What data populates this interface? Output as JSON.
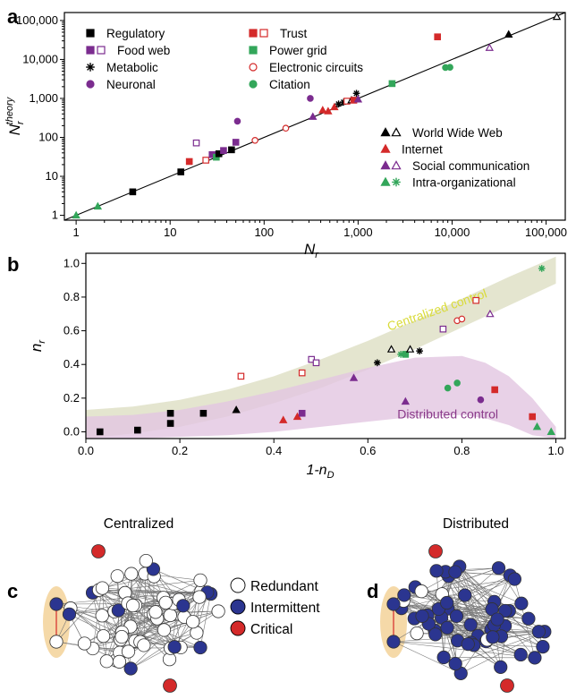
{
  "panel_labels": [
    "a",
    "b",
    "c",
    "d"
  ],
  "chart_data": [
    {
      "type": "scatter",
      "panel": "a",
      "xlabel_main": "N",
      "xlabel_sub": "r",
      "ylabel_main": "N",
      "ylabel_sub": "r",
      "ylabel_sup": "theory",
      "x_scale": "log",
      "y_scale": "log",
      "xlim": [
        0.75,
        160000
      ],
      "ylim": [
        0.75,
        160000
      ],
      "x_ticks": [
        {
          "v": 1,
          "label": "1"
        },
        {
          "v": 10,
          "label": "10"
        },
        {
          "v": 100,
          "label": "100"
        },
        {
          "v": 1000,
          "label": "1,000"
        },
        {
          "v": 10000,
          "label": "10,000"
        },
        {
          "v": 100000,
          "label": "100,000"
        }
      ],
      "y_ticks": [
        {
          "v": 1,
          "label": "1"
        },
        {
          "v": 10,
          "label": "10"
        },
        {
          "v": 100,
          "label": "100"
        },
        {
          "v": 1000,
          "label": "1,000"
        },
        {
          "v": 10000,
          "label": "10,000"
        },
        {
          "v": 100000,
          "label": "100,000"
        }
      ],
      "reference_line": "y = x",
      "legend_left": [
        {
          "label": "Regulatory",
          "markers": [
            {
              "shape": "square",
              "fill": true,
              "color": "#000000"
            }
          ]
        },
        {
          "label": "Food web",
          "markers": [
            {
              "shape": "square",
              "fill": true,
              "color": "#7b2c8f"
            },
            {
              "shape": "square",
              "fill": false,
              "color": "#7b2c8f"
            }
          ]
        },
        {
          "label": "Metabolic",
          "markers": [
            {
              "shape": "asterisk",
              "fill": true,
              "color": "#000000"
            }
          ]
        },
        {
          "label": "Neuronal",
          "markers": [
            {
              "shape": "circle",
              "fill": true,
              "color": "#7b2c8f"
            }
          ]
        }
      ],
      "legend_mid": [
        {
          "label": "Trust",
          "markers": [
            {
              "shape": "square",
              "fill": true,
              "color": "#d42a2a"
            },
            {
              "shape": "square",
              "fill": false,
              "color": "#d42a2a"
            }
          ]
        },
        {
          "label": "Power grid",
          "markers": [
            {
              "shape": "square",
              "fill": true,
              "color": "#33a65a"
            }
          ]
        },
        {
          "label": "Electronic circuits",
          "markers": [
            {
              "shape": "circle",
              "fill": false,
              "color": "#d42a2a"
            }
          ]
        },
        {
          "label": "Citation",
          "markers": [
            {
              "shape": "circle",
              "fill": true,
              "color": "#33a65a"
            }
          ]
        }
      ],
      "legend_right": [
        {
          "label": "World Wide Web",
          "markers": [
            {
              "shape": "triangle",
              "fill": true,
              "color": "#000000"
            },
            {
              "shape": "triangle",
              "fill": false,
              "color": "#000000"
            }
          ]
        },
        {
          "label": "Internet",
          "markers": [
            {
              "shape": "triangle",
              "fill": true,
              "color": "#d42a2a"
            }
          ]
        },
        {
          "label": "Social communication",
          "markers": [
            {
              "shape": "triangle",
              "fill": true,
              "color": "#7b2c8f"
            },
            {
              "shape": "triangle",
              "fill": false,
              "color": "#7b2c8f"
            }
          ]
        },
        {
          "label": "Intra-organizational",
          "markers": [
            {
              "shape": "triangle",
              "fill": true,
              "color": "#33a65a"
            },
            {
              "shape": "asterisk",
              "fill": true,
              "color": "#33a65a"
            }
          ]
        }
      ],
      "points": [
        {
          "x": 1,
          "y": 1,
          "shape": "triangle",
          "fill": true,
          "color": "#33a65a"
        },
        {
          "x": 1.7,
          "y": 1.7,
          "shape": "triangle",
          "fill": true,
          "color": "#33a65a"
        },
        {
          "x": 4,
          "y": 4,
          "shape": "square",
          "fill": true,
          "color": "#000000"
        },
        {
          "x": 13,
          "y": 13,
          "shape": "square",
          "fill": true,
          "color": "#000000"
        },
        {
          "x": 16,
          "y": 24,
          "shape": "square",
          "fill": true,
          "color": "#d42a2a"
        },
        {
          "x": 19,
          "y": 72,
          "shape": "square",
          "fill": false,
          "color": "#7b2c8f"
        },
        {
          "x": 24,
          "y": 26,
          "shape": "square",
          "fill": false,
          "color": "#d42a2a"
        },
        {
          "x": 28,
          "y": 36,
          "shape": "square",
          "fill": true,
          "color": "#7b2c8f"
        },
        {
          "x": 31,
          "y": 31,
          "shape": "square",
          "fill": true,
          "color": "#33a65a"
        },
        {
          "x": 33,
          "y": 38,
          "shape": "square",
          "fill": true,
          "color": "#000000"
        },
        {
          "x": 37,
          "y": 46,
          "shape": "square",
          "fill": true,
          "color": "#7b2c8f"
        },
        {
          "x": 45,
          "y": 48,
          "shape": "square",
          "fill": true,
          "color": "#000000"
        },
        {
          "x": 50,
          "y": 75,
          "shape": "square",
          "fill": true,
          "color": "#7b2c8f"
        },
        {
          "x": 52,
          "y": 260,
          "shape": "circle",
          "fill": true,
          "color": "#7b2c8f"
        },
        {
          "x": 80,
          "y": 84,
          "shape": "circle",
          "fill": false,
          "color": "#d42a2a"
        },
        {
          "x": 170,
          "y": 172,
          "shape": "circle",
          "fill": false,
          "color": "#d42a2a"
        },
        {
          "x": 310,
          "y": 1000,
          "shape": "circle",
          "fill": true,
          "color": "#7b2c8f"
        },
        {
          "x": 330,
          "y": 340,
          "shape": "triangle",
          "fill": true,
          "color": "#7b2c8f"
        },
        {
          "x": 420,
          "y": 500,
          "shape": "triangle",
          "fill": true,
          "color": "#d42a2a"
        },
        {
          "x": 480,
          "y": 470,
          "shape": "triangle",
          "fill": true,
          "color": "#d42a2a"
        },
        {
          "x": 560,
          "y": 600,
          "shape": "triangle",
          "fill": true,
          "color": "#d42a2a"
        },
        {
          "x": 620,
          "y": 720,
          "shape": "asterisk",
          "fill": true,
          "color": "#000000"
        },
        {
          "x": 700,
          "y": 800,
          "shape": "asterisk",
          "fill": true,
          "color": "#000000"
        },
        {
          "x": 760,
          "y": 850,
          "shape": "square",
          "fill": false,
          "color": "#d42a2a"
        },
        {
          "x": 850,
          "y": 900,
          "shape": "triangle",
          "fill": false,
          "color": "#000000"
        },
        {
          "x": 900,
          "y": 900,
          "shape": "square",
          "fill": true,
          "color": "#d42a2a"
        },
        {
          "x": 960,
          "y": 1350,
          "shape": "asterisk",
          "fill": true,
          "color": "#000000"
        },
        {
          "x": 1000,
          "y": 950,
          "shape": "triangle",
          "fill": true,
          "color": "#7b2c8f"
        },
        {
          "x": 2300,
          "y": 2400,
          "shape": "square",
          "fill": true,
          "color": "#33a65a"
        },
        {
          "x": 7000,
          "y": 38000,
          "shape": "square",
          "fill": true,
          "color": "#d42a2a"
        },
        {
          "x": 8500,
          "y": 6200,
          "shape": "circle",
          "fill": true,
          "color": "#33a65a"
        },
        {
          "x": 9500,
          "y": 6300,
          "shape": "circle",
          "fill": true,
          "color": "#33a65a"
        },
        {
          "x": 25000,
          "y": 20000,
          "shape": "triangle",
          "fill": false,
          "color": "#7b2c8f"
        },
        {
          "x": 40000,
          "y": 44000,
          "shape": "triangle",
          "fill": true,
          "color": "#000000"
        },
        {
          "x": 130000,
          "y": 125000,
          "shape": "triangle",
          "fill": false,
          "color": "#000000"
        }
      ]
    },
    {
      "type": "scatter",
      "panel": "b",
      "xlabel": "1-n",
      "xlabel_sub": "D",
      "ylabel_main": "n",
      "ylabel_sub": "r",
      "xlim": [
        0,
        1.02
      ],
      "ylim": [
        -0.04,
        1.06
      ],
      "x_ticks": [
        {
          "v": 0,
          "label": "0.0"
        },
        {
          "v": 0.2,
          "label": "0.2"
        },
        {
          "v": 0.4,
          "label": "0.4"
        },
        {
          "v": 0.6,
          "label": "0.6"
        },
        {
          "v": 0.8,
          "label": "0.8"
        },
        {
          "v": 1.0,
          "label": "1.0"
        }
      ],
      "y_ticks": [
        {
          "v": 0,
          "label": "0.0"
        },
        {
          "v": 0.2,
          "label": "0.2"
        },
        {
          "v": 0.4,
          "label": "0.4"
        },
        {
          "v": 0.6,
          "label": "0.6"
        },
        {
          "v": 0.8,
          "label": "0.8"
        },
        {
          "v": 1.0,
          "label": "1.0"
        }
      ],
      "bands": [
        {
          "label": "Centralized control",
          "color": "#e4e5cf",
          "label_color": "#d9db3a",
          "upper": [
            [
              0,
              0.13
            ],
            [
              0.1,
              0.15
            ],
            [
              0.2,
              0.19
            ],
            [
              0.3,
              0.25
            ],
            [
              0.4,
              0.33
            ],
            [
              0.5,
              0.43
            ],
            [
              0.6,
              0.54
            ],
            [
              0.7,
              0.66
            ],
            [
              0.8,
              0.79
            ],
            [
              0.9,
              0.92
            ],
            [
              1.0,
              1.04
            ]
          ],
          "lower": [
            [
              0,
              -0.04
            ],
            [
              0.1,
              -0.01
            ],
            [
              0.2,
              0.03
            ],
            [
              0.3,
              0.09
            ],
            [
              0.4,
              0.17
            ],
            [
              0.5,
              0.26
            ],
            [
              0.6,
              0.37
            ],
            [
              0.7,
              0.49
            ],
            [
              0.8,
              0.62
            ],
            [
              0.9,
              0.75
            ],
            [
              1.0,
              0.88
            ]
          ]
        },
        {
          "label": "Distributed control",
          "color": "#e2c5e1",
          "label_color": "#8a3a8a",
          "upper": [
            [
              0,
              0.09
            ],
            [
              0.1,
              0.1
            ],
            [
              0.2,
              0.13
            ],
            [
              0.3,
              0.18
            ],
            [
              0.4,
              0.24
            ],
            [
              0.5,
              0.31
            ],
            [
              0.6,
              0.38
            ],
            [
              0.7,
              0.44
            ],
            [
              0.8,
              0.45
            ],
            [
              0.85,
              0.41
            ],
            [
              0.9,
              0.33
            ],
            [
              0.95,
              0.2
            ],
            [
              1.0,
              0.03
            ]
          ],
          "lower": [
            [
              0,
              -0.04
            ],
            [
              0.1,
              -0.04
            ],
            [
              0.2,
              -0.03
            ],
            [
              0.3,
              -0.02
            ],
            [
              0.4,
              0.0
            ],
            [
              0.5,
              0.03
            ],
            [
              0.6,
              0.06
            ],
            [
              0.7,
              0.09
            ],
            [
              0.8,
              0.1
            ],
            [
              0.85,
              0.08
            ],
            [
              0.9,
              0.04
            ],
            [
              0.95,
              -0.02
            ],
            [
              1.0,
              -0.04
            ]
          ]
        }
      ],
      "points": [
        {
          "x": 0.03,
          "y": 0.0,
          "shape": "square",
          "fill": true,
          "color": "#000000"
        },
        {
          "x": 0.11,
          "y": 0.01,
          "shape": "square",
          "fill": true,
          "color": "#000000"
        },
        {
          "x": 0.18,
          "y": 0.11,
          "shape": "square",
          "fill": true,
          "color": "#000000"
        },
        {
          "x": 0.18,
          "y": 0.05,
          "shape": "square",
          "fill": true,
          "color": "#000000"
        },
        {
          "x": 0.25,
          "y": 0.11,
          "shape": "square",
          "fill": true,
          "color": "#000000"
        },
        {
          "x": 0.32,
          "y": 0.13,
          "shape": "triangle",
          "fill": true,
          "color": "#000000"
        },
        {
          "x": 0.33,
          "y": 0.33,
          "shape": "square",
          "fill": false,
          "color": "#d42a2a"
        },
        {
          "x": 0.42,
          "y": 0.07,
          "shape": "triangle",
          "fill": true,
          "color": "#d42a2a"
        },
        {
          "x": 0.45,
          "y": 0.09,
          "shape": "triangle",
          "fill": true,
          "color": "#d42a2a"
        },
        {
          "x": 0.46,
          "y": 0.11,
          "shape": "square",
          "fill": true,
          "color": "#7b2c8f"
        },
        {
          "x": 0.46,
          "y": 0.35,
          "shape": "square",
          "fill": false,
          "color": "#d42a2a"
        },
        {
          "x": 0.48,
          "y": 0.43,
          "shape": "square",
          "fill": false,
          "color": "#7b2c8f"
        },
        {
          "x": 0.49,
          "y": 0.41,
          "shape": "square",
          "fill": false,
          "color": "#7b2c8f"
        },
        {
          "x": 0.57,
          "y": 0.32,
          "shape": "triangle",
          "fill": true,
          "color": "#7b2c8f"
        },
        {
          "x": 0.62,
          "y": 0.41,
          "shape": "asterisk",
          "fill": true,
          "color": "#000000"
        },
        {
          "x": 0.65,
          "y": 0.49,
          "shape": "triangle",
          "fill": false,
          "color": "#000000"
        },
        {
          "x": 0.67,
          "y": 0.46,
          "shape": "asterisk",
          "fill": true,
          "color": "#33a65a"
        },
        {
          "x": 0.68,
          "y": 0.46,
          "shape": "square",
          "fill": true,
          "color": "#33a65a"
        },
        {
          "x": 0.68,
          "y": 0.18,
          "shape": "triangle",
          "fill": true,
          "color": "#7b2c8f"
        },
        {
          "x": 0.69,
          "y": 0.49,
          "shape": "triangle",
          "fill": false,
          "color": "#000000"
        },
        {
          "x": 0.71,
          "y": 0.48,
          "shape": "asterisk",
          "fill": true,
          "color": "#000000"
        },
        {
          "x": 0.76,
          "y": 0.61,
          "shape": "square",
          "fill": false,
          "color": "#7b2c8f"
        },
        {
          "x": 0.77,
          "y": 0.26,
          "shape": "circle",
          "fill": true,
          "color": "#33a65a"
        },
        {
          "x": 0.79,
          "y": 0.29,
          "shape": "circle",
          "fill": true,
          "color": "#33a65a"
        },
        {
          "x": 0.79,
          "y": 0.66,
          "shape": "circle",
          "fill": false,
          "color": "#d42a2a"
        },
        {
          "x": 0.8,
          "y": 0.67,
          "shape": "circle",
          "fill": false,
          "color": "#d42a2a"
        },
        {
          "x": 0.83,
          "y": 0.78,
          "shape": "square",
          "fill": false,
          "color": "#d42a2a"
        },
        {
          "x": 0.84,
          "y": 0.19,
          "shape": "circle",
          "fill": true,
          "color": "#7b2c8f"
        },
        {
          "x": 0.86,
          "y": 0.7,
          "shape": "triangle",
          "fill": false,
          "color": "#7b2c8f"
        },
        {
          "x": 0.87,
          "y": 0.25,
          "shape": "square",
          "fill": true,
          "color": "#d42a2a"
        },
        {
          "x": 0.95,
          "y": 0.09,
          "shape": "square",
          "fill": true,
          "color": "#d42a2a"
        },
        {
          "x": 0.96,
          "y": 0.03,
          "shape": "triangle",
          "fill": true,
          "color": "#33a65a"
        },
        {
          "x": 0.97,
          "y": 0.97,
          "shape": "asterisk",
          "fill": true,
          "color": "#33a65a"
        },
        {
          "x": 0.99,
          "y": 0.0,
          "shape": "triangle",
          "fill": true,
          "color": "#33a65a"
        }
      ]
    }
  ],
  "network_legend": [
    {
      "label": "Redundant",
      "color": "#ffffff"
    },
    {
      "label": "Intermittent",
      "color": "#2b3590"
    },
    {
      "label": "Critical",
      "color": "#d42a2a"
    }
  ],
  "networks": [
    {
      "title": "Centralized",
      "mode": "centralized",
      "highlight_color": "#f5d9a8"
    },
    {
      "title": "Distributed",
      "mode": "distributed",
      "highlight_color": "#f5d9a8"
    }
  ]
}
